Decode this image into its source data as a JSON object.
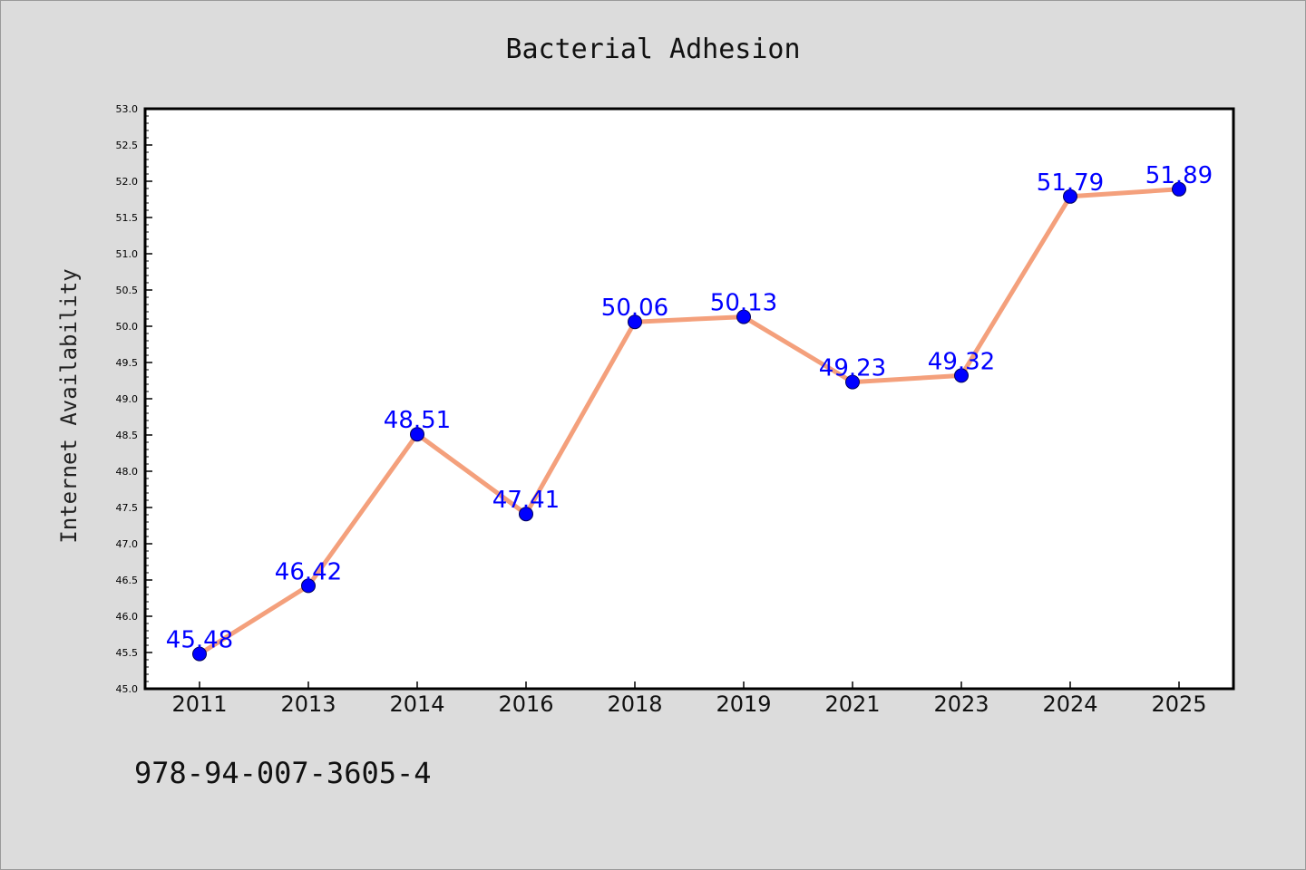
{
  "chart_data": {
    "type": "line",
    "title": "Bacterial Adhesion",
    "xlabel": "",
    "ylabel": "Internet Availability",
    "categories": [
      "2011",
      "2013",
      "2014",
      "2016",
      "2018",
      "2019",
      "2021",
      "2023",
      "2024",
      "2025"
    ],
    "values": [
      45.48,
      46.42,
      48.51,
      47.41,
      50.06,
      50.13,
      49.23,
      49.32,
      51.79,
      51.89
    ],
    "data_labels": [
      "45.48",
      "46.42",
      "48.51",
      "47.41",
      "50.06",
      "50.13",
      "49.23",
      "49.32",
      "51.79",
      "51.89"
    ],
    "ylim": [
      45.0,
      53.0
    ],
    "yticks": [
      "45.0",
      "45.5",
      "46.0",
      "46.5",
      "47.0",
      "47.5",
      "48.0",
      "48.5",
      "49.0",
      "49.5",
      "50.0",
      "50.5",
      "51.0",
      "51.5",
      "52.0",
      "52.5",
      "53.0"
    ],
    "grid": false,
    "legend": "none",
    "colors": {
      "line": "#f4a07c",
      "marker": "#0000ff",
      "data_label": "#0000ff",
      "background": "#dcdcdc",
      "plot_background": "#ffffff"
    }
  },
  "footer": {
    "text": "978-94-007-3605-4"
  }
}
